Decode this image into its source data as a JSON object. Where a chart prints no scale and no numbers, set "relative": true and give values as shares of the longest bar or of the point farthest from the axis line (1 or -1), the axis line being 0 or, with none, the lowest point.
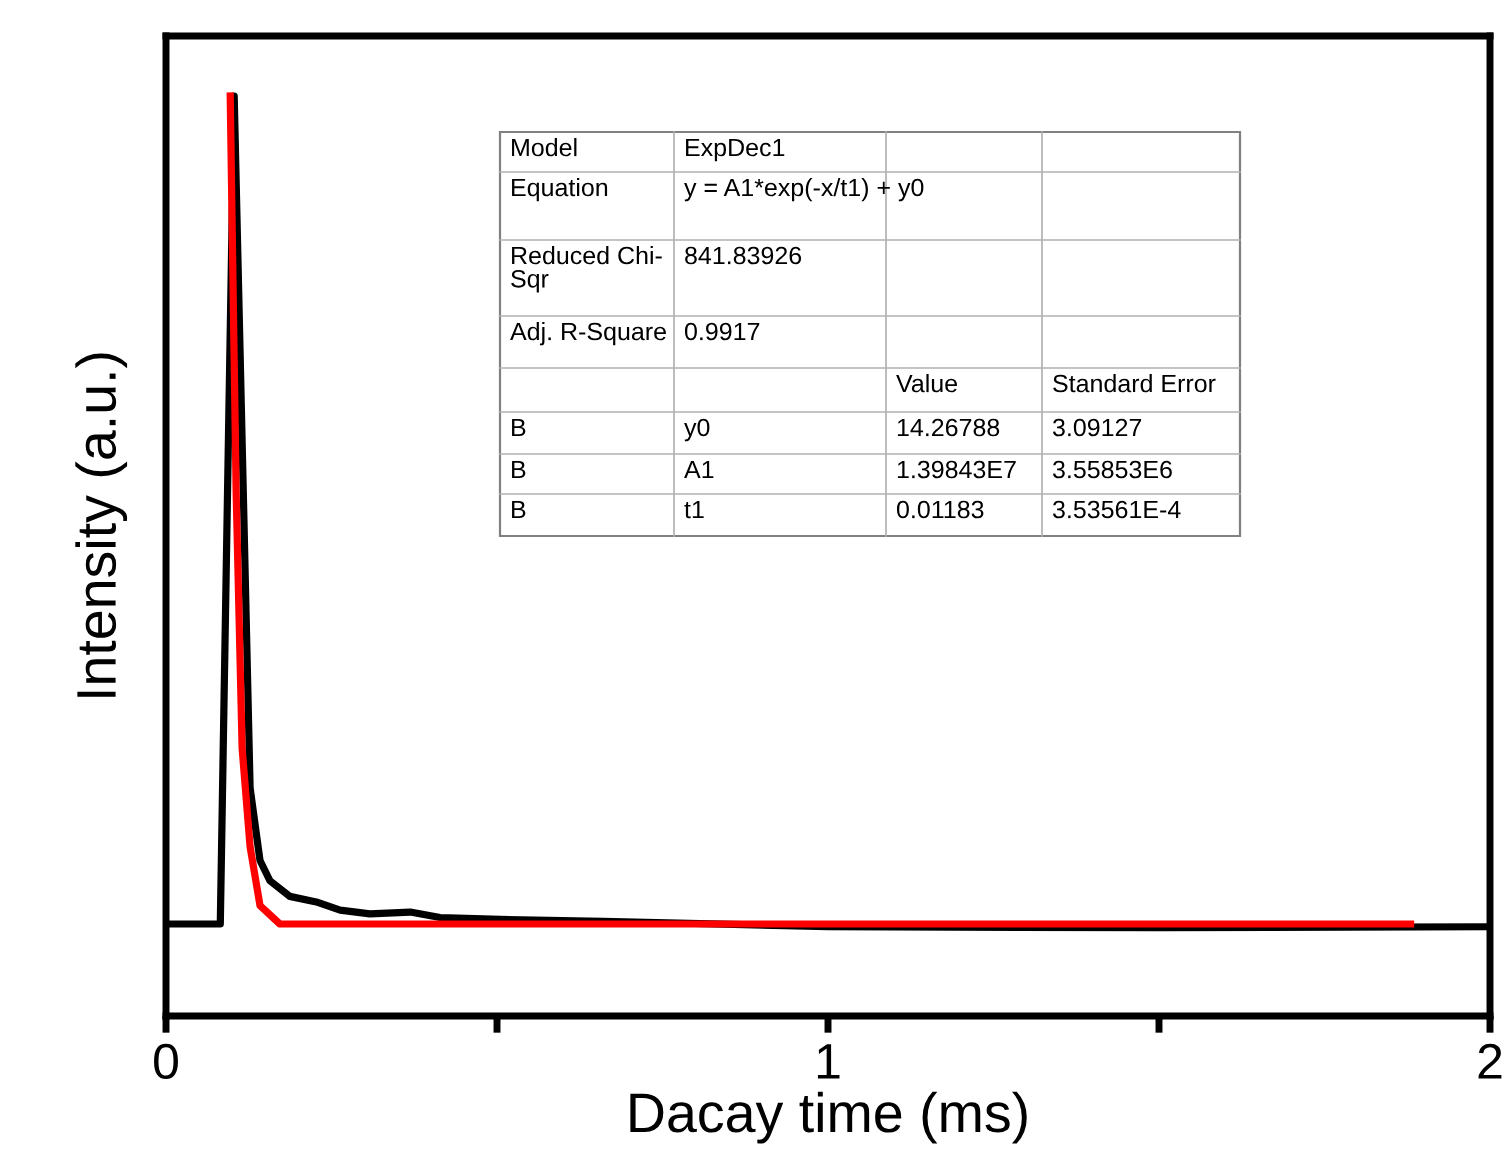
{
  "chart_data": {
    "type": "line",
    "relative": true,
    "xlabel": "Dacay time (ms)",
    "ylabel": "Intensity (a.u.)",
    "xlim": [
      0,
      2
    ],
    "xticks": [
      0,
      {
        "value": 0.5,
        "label": null
      },
      1,
      {
        "value": 1.5,
        "label": null
      },
      2
    ],
    "tick_labels": "x",
    "grid": false,
    "legend": false,
    "marker": "none",
    "line_style": "solid",
    "series": [
      {
        "color": "#000000",
        "x": [
          0,
          0.082,
          0.103,
          0.127,
          0.142,
          0.157,
          0.187,
          0.227,
          0.263,
          0.308,
          0.369,
          0.414,
          0.505,
          0.66,
          1.0,
          1.5,
          2.0
        ],
        "values": [
          0.1,
          0.1,
          1.0,
          0.248,
          0.169,
          0.147,
          0.13,
          0.124,
          0.115,
          0.111,
          0.113,
          0.107,
          0.105,
          0.103,
          0.097,
          0.096,
          0.097
        ]
      },
      {
        "color": "#ff0000",
        "x": [
          0.097,
          0.106,
          0.115,
          0.127,
          0.142,
          0.172,
          0.3,
          1.0,
          1.88
        ],
        "values": [
          1.0,
          0.568,
          0.291,
          0.184,
          0.12,
          0.1,
          0.1,
          0.1,
          0.1
        ]
      }
    ],
    "annotations": [
      "Model",
      "ExpDec1",
      "Equation",
      "y = A1*exp(-x/t1) + y0",
      "Reduced Chi-\nSqr",
      "841.83926",
      "Adj. R-Square",
      "0.9917",
      "Value",
      "Standard Error",
      "B",
      "y0",
      "14.26788",
      "3.09127",
      "B",
      "A1",
      "1.39843E7",
      "3.55853E6",
      "B",
      "t1",
      "0.01183",
      "3.53561E-4"
    ]
  }
}
